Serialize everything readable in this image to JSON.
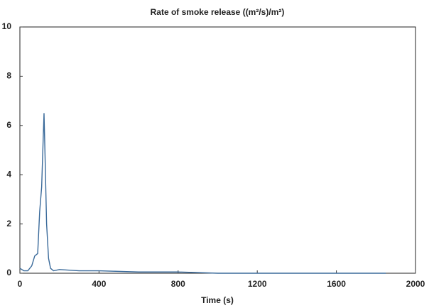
{
  "chart_data": {
    "type": "line",
    "title": "Rate of smoke release ((m²/s)/m²)",
    "x_label": "Time (s)",
    "x": [
      0,
      20,
      40,
      60,
      75,
      90,
      100,
      110,
      118,
      122,
      128,
      135,
      145,
      155,
      170,
      200,
      300,
      400,
      600,
      800,
      1000,
      1200,
      1400,
      1600,
      1700,
      1850
    ],
    "values": [
      0.2,
      0.1,
      0.1,
      0.3,
      0.7,
      0.8,
      2.5,
      3.5,
      5.5,
      6.5,
      4.5,
      2.0,
      0.6,
      0.2,
      0.1,
      0.15,
      0.1,
      0.1,
      0.05,
      0.05,
      0.0,
      0.0,
      0.0,
      0.0,
      0.0,
      0.0
    ],
    "color": "#3a6a9a",
    "xlim": [
      0,
      2000
    ],
    "xticks": [
      0,
      400,
      800,
      1200,
      1600,
      2000
    ],
    "ylim": [
      0,
      10
    ],
    "yticks": [
      0,
      2,
      4,
      6,
      8,
      10
    ]
  }
}
